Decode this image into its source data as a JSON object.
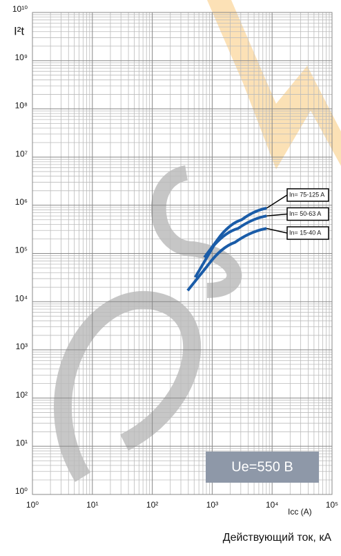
{
  "chart_data": {
    "type": "line",
    "xscale": "log",
    "yscale": "log",
    "grid": true,
    "ylabel": "I²t",
    "xlabel": "Icc (A)",
    "note": "Действующий ток, кА",
    "annotation": "Ue=550 B",
    "xlim": [
      1,
      100000
    ],
    "ylim": [
      1,
      10000000000
    ],
    "xticks": [
      {
        "value": 1,
        "label": "10⁰"
      },
      {
        "value": 10,
        "label": "10¹"
      },
      {
        "value": 100,
        "label": "10²"
      },
      {
        "value": 1000,
        "label": "10³"
      },
      {
        "value": 10000,
        "label": "10⁴"
      },
      {
        "value": 100000,
        "label": "10⁵"
      }
    ],
    "yticks": [
      {
        "value": 1,
        "label": "10⁰"
      },
      {
        "value": 10,
        "label": "10¹"
      },
      {
        "value": 100,
        "label": "10²"
      },
      {
        "value": 1000,
        "label": "10³"
      },
      {
        "value": 10000,
        "label": "10⁴"
      },
      {
        "value": 100000,
        "label": "10⁵"
      },
      {
        "value": 1000000,
        "label": "10⁶"
      },
      {
        "value": 10000000,
        "label": "10⁷"
      },
      {
        "value": 100000000,
        "label": "10⁸"
      },
      {
        "value": 1000000000,
        "label": "10⁹"
      },
      {
        "value": 10000000000,
        "label": "10¹⁰"
      }
    ],
    "series": [
      {
        "name": "In= 75-125 A",
        "color": "#1a5ca8",
        "x": [
          740,
          1400,
          3100,
          8100
        ],
        "values": [
          83000,
          240000,
          500000,
          870000
        ]
      },
      {
        "name": "In= 50-63 A",
        "color": "#1a5ca8",
        "x": [
          520,
          1070,
          2700,
          8100
        ],
        "values": [
          32000,
          147000,
          330000,
          600000
        ]
      },
      {
        "name": "In= 15-40 A",
        "color": "#1a5ca8",
        "x": [
          390,
          820,
          2400,
          8100
        ],
        "values": [
          17000,
          54000,
          170000,
          330000
        ]
      }
    ]
  }
}
